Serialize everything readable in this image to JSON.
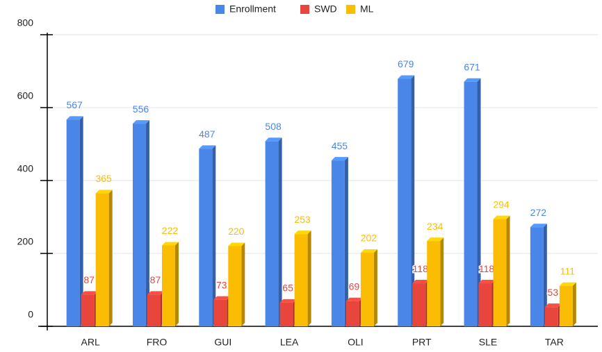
{
  "chart_data": {
    "type": "bar3d",
    "categories": [
      "ARL",
      "FRO",
      "GUI",
      "LEA",
      "OLI",
      "PRT",
      "SLE",
      "TAR"
    ],
    "series": [
      {
        "name": "Enrollment",
        "color": "#4a86e8",
        "values": [
          567,
          556,
          487,
          508,
          455,
          679,
          671,
          272
        ]
      },
      {
        "name": "SWD",
        "color": "#e8453c",
        "values": [
          87,
          87,
          73,
          65,
          69,
          118,
          118,
          53
        ]
      },
      {
        "name": "ML",
        "color": "#fbbc04",
        "values": [
          365,
          222,
          220,
          253,
          202,
          234,
          294,
          111
        ]
      }
    ],
    "ylim": [
      0,
      800
    ],
    "yticks": [
      0,
      200,
      400,
      600,
      800
    ],
    "grid": true,
    "legend": "top"
  }
}
